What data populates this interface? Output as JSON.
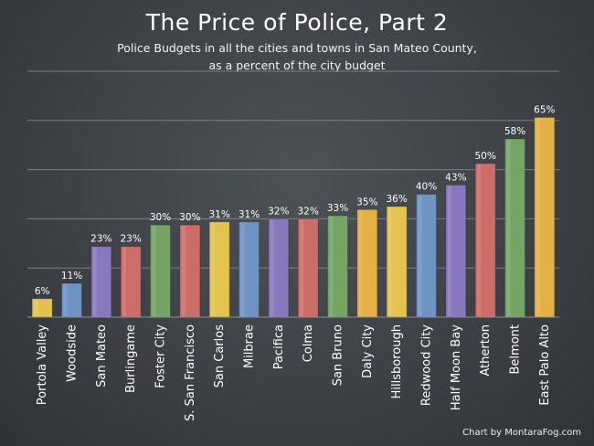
{
  "title": "The Price of Police, Part 2",
  "subtitle_line1": "Police Budgets in all the cities and towns in San Mateo County,",
  "subtitle_line2": "as a percent of the city budget",
  "credit": "Chart by MontaraFog.com",
  "chart_data": {
    "type": "bar",
    "title": "The Price of Police, Part 2",
    "subtitle": "Police Budgets in all the cities and towns in San Mateo County, as a percent of the city budget",
    "xlabel": "",
    "ylabel": "",
    "ylim": [
      0,
      80
    ],
    "grid": true,
    "categories": [
      "Portola Valley",
      "Woodside",
      "San Mateo",
      "Burlingame",
      "Foster City",
      "S. San Francisco",
      "San Carlos",
      "Milbrae",
      "Pacifica",
      "Colma",
      "San Bruno",
      "Daly City",
      "Hillsborough",
      "Redwood City",
      "Half Moon Bay",
      "Atherton",
      "Belmont",
      "East Palo Alto"
    ],
    "values": [
      6,
      11,
      23,
      23,
      30,
      30,
      31,
      31,
      32,
      32,
      33,
      35,
      36,
      40,
      43,
      50,
      58,
      65
    ],
    "labels": [
      "6%",
      "11%",
      "23%",
      "23%",
      "30%",
      "30%",
      "31%",
      "31%",
      "32%",
      "32%",
      "33%",
      "35%",
      "36%",
      "40%",
      "43%",
      "50%",
      "58%",
      "65%"
    ],
    "bar_colors": [
      "#e3c24f",
      "#6f93c2",
      "#8877bd",
      "#cc6d68",
      "#74a565",
      "#cc6d68",
      "#e3c24f",
      "#6f93c2",
      "#8877bd",
      "#cc6d68",
      "#74a565",
      "#e3b045",
      "#e3c24f",
      "#6f93c2",
      "#8877bd",
      "#cc6d68",
      "#74a565",
      "#e3b045"
    ],
    "grid_color": "#8a8e92"
  }
}
